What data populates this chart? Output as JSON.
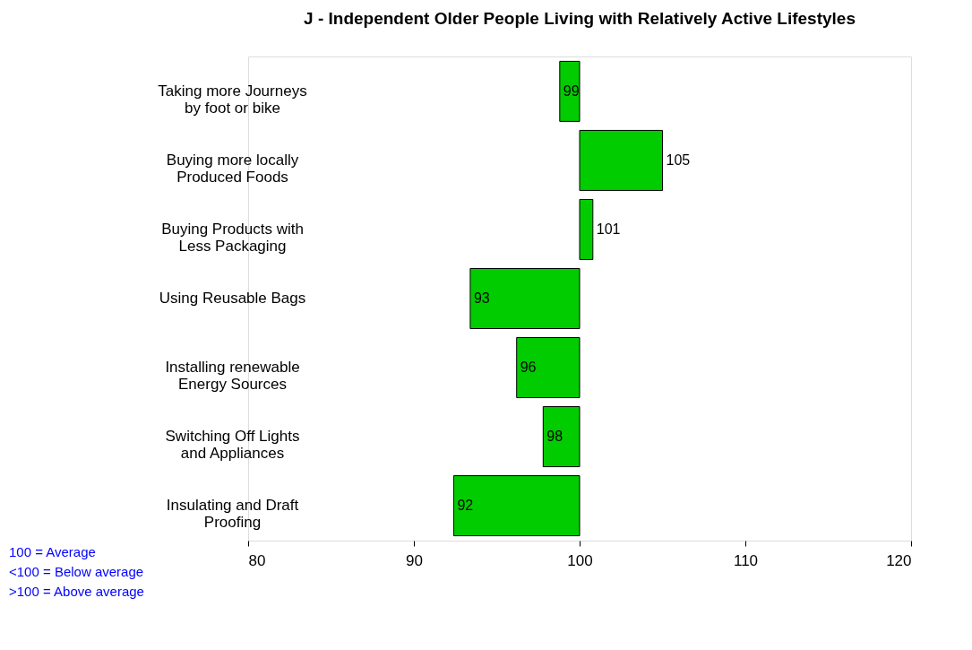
{
  "chart_data": {
    "type": "bar",
    "orientation": "horizontal",
    "title": "J - Independent Older People Living with Relatively Active Lifestyles",
    "categories": [
      "Taking more Journeys by foot or bike",
      "Buying more locally Produced Foods",
      "Buying Products with Less Packaging",
      "Using Reusable Bags",
      "Installing renewable Energy Sources",
      "Switching Off Lights and Appliances",
      "Insulating and Draft Proofing"
    ],
    "base": [
      100,
      100,
      100,
      100,
      100,
      100,
      100
    ],
    "values": [
      -1.2,
      5.0,
      0.8,
      -6.6,
      -3.8,
      -2.2,
      -7.6
    ],
    "value_labels": [
      "99",
      "105",
      "101",
      "93",
      "96",
      "98",
      "92"
    ],
    "color": "#00cc00",
    "xlim": [
      80,
      120
    ],
    "xticks": [
      80,
      90,
      100,
      110,
      120
    ],
    "grid": false,
    "annotations": [
      "100 = Average",
      "<100 = Below average",
      ">100 = Above average"
    ]
  }
}
